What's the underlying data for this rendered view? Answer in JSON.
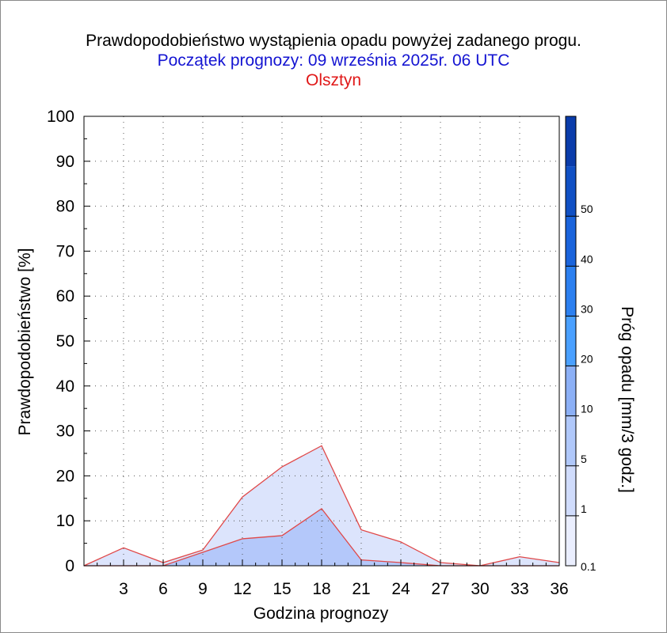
{
  "titles": {
    "main": "Prawdopodobieństwo wystąpienia opadu powyżej zadanego progu.",
    "start": "Początek prognozy: 09 września 2025r. 06 UTC",
    "location": "Olsztyn"
  },
  "colors": {
    "title_start": "#1414d2",
    "title_location": "#e01818",
    "series_line": "#e04848"
  },
  "chart_data": {
    "type": "area",
    "xlabel": "Godzina prognozy",
    "ylabel": "Prawdopodobieństwo [%]",
    "xlim": [
      0,
      36
    ],
    "ylim": [
      0,
      100
    ],
    "x_ticks": [
      3,
      6,
      9,
      12,
      15,
      18,
      21,
      24,
      27,
      30,
      33,
      36
    ],
    "y_ticks": [
      0,
      10,
      20,
      30,
      40,
      50,
      60,
      70,
      80,
      90,
      100
    ],
    "grid": true,
    "x": [
      0,
      3,
      6,
      9,
      12,
      15,
      18,
      21,
      24,
      27,
      30,
      33,
      36
    ],
    "series": [
      {
        "name": "0.1",
        "color": "#dce4fc",
        "values": [
          0,
          4,
          0.7,
          3.5,
          15.3,
          22,
          26.7,
          8,
          5.3,
          0.7,
          0,
          2,
          0.7
        ]
      },
      {
        "name": "1",
        "color": "#b4c8fa",
        "values": [
          0,
          0,
          0,
          3,
          6,
          6.7,
          12.7,
          1.3,
          0.7,
          0,
          0,
          0,
          0
        ]
      }
    ],
    "colorbar": {
      "label": "Próg opadu [mm/3 godz.]",
      "tick_labels": [
        "0.1",
        "1",
        "5",
        "10",
        "20",
        "30",
        "40",
        "50"
      ],
      "colors": [
        "#eaeefe",
        "#d0dcfc",
        "#b0c8fa",
        "#8cb0f6",
        "#4aa0ff",
        "#2c80f0",
        "#1a64dc",
        "#1050c4",
        "#0a3caa"
      ]
    }
  }
}
